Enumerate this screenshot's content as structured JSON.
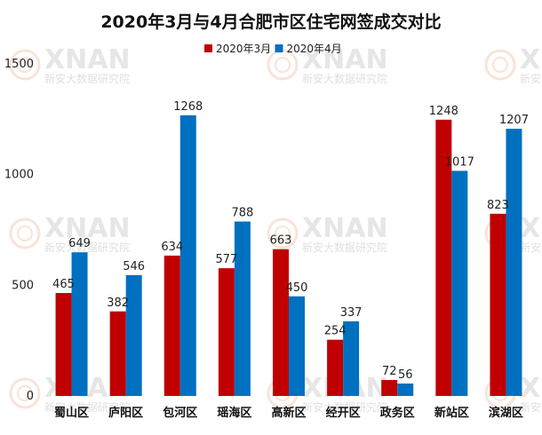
{
  "chart_data": {
    "type": "bar",
    "title": "2020年3月与4月合肥市区住宅网签成交对比",
    "categories": [
      "蜀山区",
      "庐阳区",
      "包河区",
      "瑶海区",
      "高新区",
      "经开区",
      "政务区",
      "新站区",
      "滨湖区"
    ],
    "series": [
      {
        "name": "2020年3月",
        "color": "#c00000",
        "values": [
          465,
          382,
          634,
          577,
          663,
          254,
          72,
          1248,
          823
        ]
      },
      {
        "name": "2020年4月",
        "color": "#0070c0",
        "values": [
          649,
          546,
          1268,
          788,
          450,
          337,
          56,
          1017,
          1207
        ]
      }
    ],
    "ylim": [
      0,
      1500
    ],
    "yticks": [
      0,
      500,
      1000,
      1500
    ],
    "legend_position": "top-center",
    "grid": false,
    "data_labels": true
  },
  "watermark": {
    "text": "XNAN",
    "subtext": "新安大数据研究院",
    "icon": "xnan-logo-icon"
  }
}
